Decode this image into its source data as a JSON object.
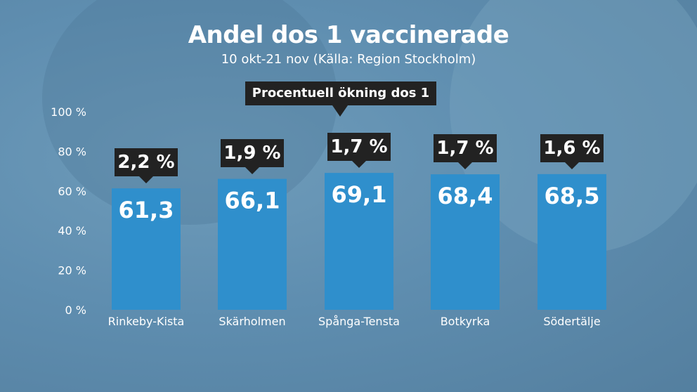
{
  "chart_data": {
    "type": "bar",
    "title": "Andel dos 1 vaccinerade",
    "subtitle": "10 okt-21 nov  (Källa: Region Stockholm)",
    "categories": [
      "Rinkeby-Kista",
      "Skärholmen",
      "Spånga-Tensta",
      "Botkyrka",
      "Södertälje"
    ],
    "values": [
      61.3,
      66.1,
      69.1,
      68.4,
      68.5
    ],
    "value_labels": [
      "61,3",
      "66,1",
      "69,1",
      "68,4",
      "68,5"
    ],
    "annotation_title": "Procentuell ökning dos 1",
    "increase_labels": [
      "2,2 %",
      "1,9 %",
      "1,7 %",
      "1,7 %",
      "1,6 %"
    ],
    "ylim": [
      0,
      100
    ],
    "yticks": [
      0,
      20,
      40,
      60,
      80,
      100
    ],
    "ytick_labels": [
      "0 %",
      "20 %",
      "40 %",
      "60 %",
      "80 %",
      "100 %"
    ],
    "grid": false,
    "bar_color": "#2f8fcc",
    "callout_color": "#222222"
  }
}
